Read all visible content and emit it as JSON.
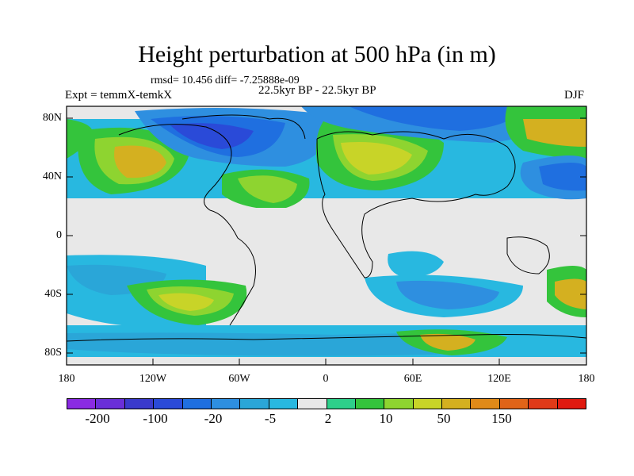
{
  "title": "Height perturbation at 500 hPa (in m)",
  "stats": "rmsd= 10.456 diff= -7.25888e-09",
  "period": "22.5kyr BP - 22.5kyr BP",
  "expt": "Expt = temmX-temkX",
  "season": "DJF",
  "lat_labels": [
    "80N",
    "40N",
    "0",
    "40S",
    "80S"
  ],
  "lon_labels": [
    "180",
    "120W",
    "60W",
    "0",
    "60E",
    "120E",
    "180"
  ],
  "colorbar": {
    "colors": [
      "#8a2be2",
      "#6a2fd8",
      "#3a3acc",
      "#2a4ad8",
      "#1f6fe0",
      "#2e8fe0",
      "#2aa6d8",
      "#28b8e0",
      "#e8e8e8",
      "#2ecf8a",
      "#34c43c",
      "#8ed430",
      "#c8d428",
      "#d4b020",
      "#e08a18",
      "#e06418",
      "#e03a18",
      "#e01a10"
    ],
    "labels": [
      "-200",
      "-100",
      "-20",
      "-5",
      "2",
      "10",
      "50",
      "150"
    ]
  }
}
